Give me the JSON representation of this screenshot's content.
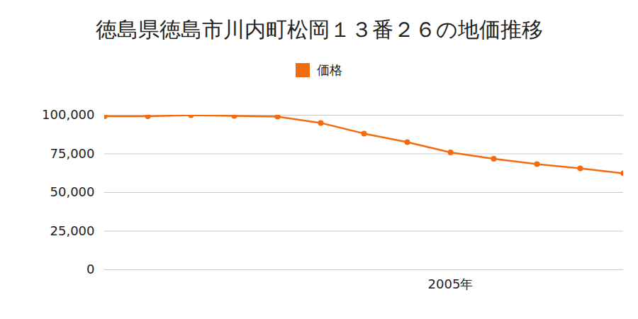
{
  "chart_data": {
    "type": "line",
    "title": "徳島県徳島市川内町松岡１３番２６の地価推移",
    "categories": [
      null,
      null,
      null,
      null,
      null,
      null,
      null,
      null,
      "2005年",
      null,
      null,
      null,
      null
    ],
    "series": [
      {
        "name": "価格",
        "color": "#f26b0f",
        "marker": "circle",
        "values": [
          99300,
          99300,
          100000,
          99500,
          99100,
          95000,
          88100,
          82600,
          75900,
          71800,
          68300,
          65600,
          62400
        ]
      }
    ],
    "ylim": [
      0,
      100000
    ],
    "yticks": [
      0,
      {
        "value": 25000,
        "label": "25,000"
      },
      {
        "value": 50000,
        "label": "50,000"
      },
      {
        "value": 75000,
        "label": "75,000"
      },
      {
        "value": 100000,
        "label": "100,000"
      }
    ],
    "grid": true,
    "legend": "top"
  }
}
